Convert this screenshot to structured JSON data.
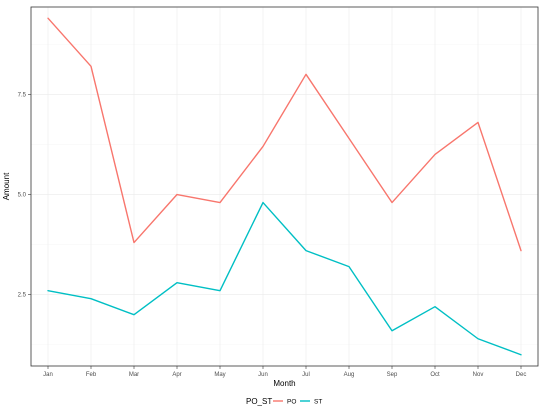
{
  "chart_data": {
    "type": "line",
    "xlabel": "Month",
    "ylabel": "Amount",
    "categories": [
      "Jan",
      "Feb",
      "Mar",
      "Apr",
      "May",
      "Jun",
      "Jul",
      "Aug",
      "Sep",
      "Oct",
      "Nov",
      "Dec"
    ],
    "ylim": [
      0.72,
      9.68
    ],
    "y_ticks": [
      2.5,
      5.0,
      7.5
    ],
    "y_tick_labels": [
      "2.5",
      "5.0",
      "7.5"
    ],
    "grid": true,
    "legend": {
      "title": "PO_ST",
      "position": "bottom"
    },
    "series": [
      {
        "name": "PO",
        "color": "#F8766D",
        "values": [
          9.4,
          8.2,
          3.8,
          5.0,
          4.8,
          6.2,
          8.0,
          6.4,
          4.8,
          6.0,
          6.8,
          3.6
        ]
      },
      {
        "name": "ST",
        "color": "#00BFC4",
        "values": [
          2.6,
          2.4,
          2.0,
          2.8,
          2.6,
          4.8,
          3.6,
          3.2,
          1.6,
          2.2,
          1.4,
          1.0
        ]
      }
    ]
  }
}
